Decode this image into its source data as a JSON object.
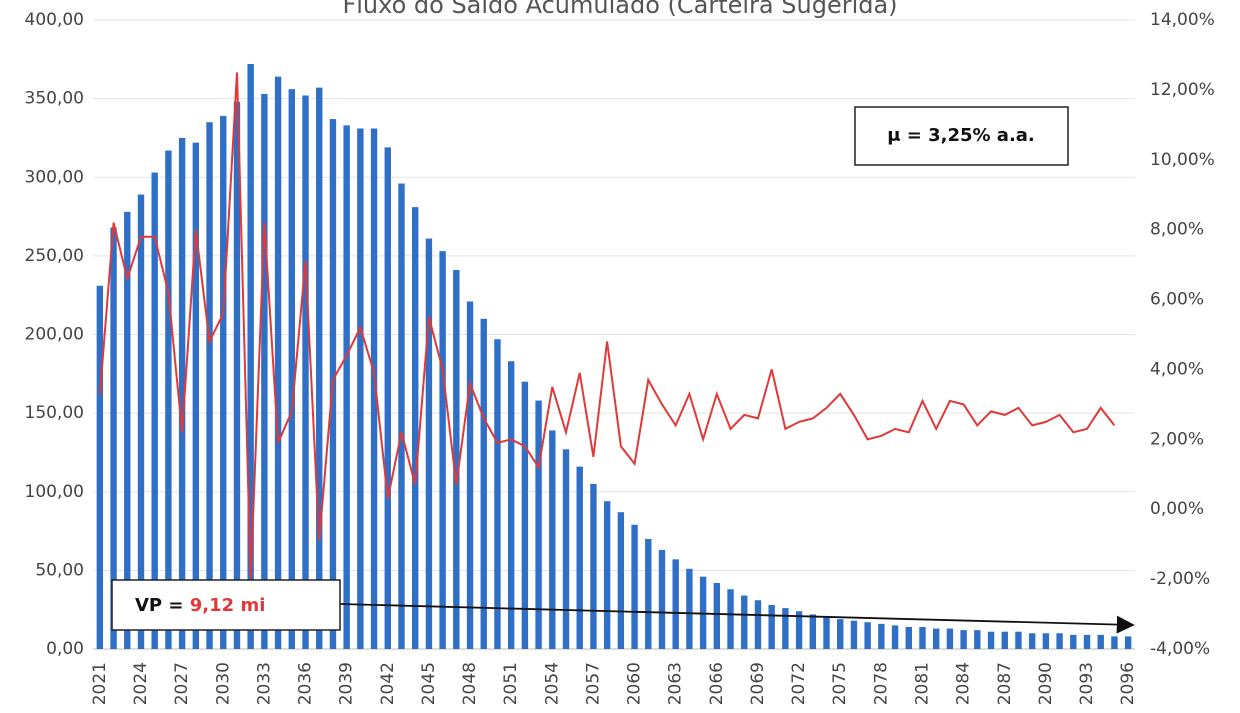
{
  "chart_data": {
    "type": "bar_line",
    "title": "Fluxo do Saldo Acumulado (Carteira Sugerida)",
    "categories": [
      "2021",
      null,
      null,
      "2024",
      null,
      null,
      "2027",
      null,
      null,
      "2030",
      null,
      null,
      "2033",
      null,
      null,
      "2036",
      null,
      null,
      "2039",
      null,
      null,
      "2042",
      null,
      null,
      "2045",
      null,
      null,
      "2048",
      null,
      null,
      "2051",
      null,
      null,
      "2054",
      null,
      null,
      "2057",
      null,
      null,
      "2060",
      null,
      null,
      "2063",
      null,
      null,
      "2066",
      null,
      null,
      "2069",
      null,
      null,
      "2072",
      null,
      null,
      "2075",
      null,
      null,
      "2078",
      null,
      null,
      "2081",
      null,
      null,
      "2084",
      null,
      null,
      "2087",
      null,
      null,
      "2090",
      null,
      null,
      "2093",
      null,
      null,
      "2096"
    ],
    "series": [
      {
        "type": "bar",
        "color": "#2f6fc6",
        "values": [
          231,
          268,
          278,
          289,
          303,
          317,
          325,
          322,
          335,
          339,
          348,
          372,
          353,
          364,
          356,
          352,
          357,
          337,
          333,
          331,
          331,
          319,
          296,
          281,
          261,
          253,
          241,
          221,
          210,
          197,
          183,
          170,
          158,
          139,
          127,
          116,
          105,
          94,
          87,
          79,
          70,
          63,
          57,
          51,
          46,
          42,
          38,
          34,
          31,
          28,
          26,
          24,
          22,
          20,
          19,
          18,
          17,
          16,
          15,
          14,
          14,
          13,
          13,
          12,
          12,
          11,
          11,
          11,
          10,
          10,
          10,
          9,
          9,
          9,
          8,
          8
        ]
      },
      {
        "type": "line",
        "axis": "y2",
        "color": "#e0393a",
        "values": [
          3.3,
          8.2,
          6.6,
          7.8,
          7.8,
          6.2,
          2.2,
          8.0,
          4.8,
          5.6,
          12.5,
          -2.0,
          8.2,
          1.9,
          2.8,
          7.1,
          -0.9,
          3.7,
          4.4,
          5.2,
          3.9,
          0.3,
          2.2,
          0.7,
          5.5,
          4.0,
          0.7,
          3.6,
          2.6,
          1.9,
          2.0,
          1.8,
          1.2,
          3.5,
          2.2,
          3.9,
          1.5,
          4.8,
          1.8,
          1.3,
          3.7,
          3.0,
          2.4,
          3.3,
          2.0,
          3.3,
          2.3,
          2.7,
          2.6,
          4.0,
          2.3,
          2.5,
          2.6,
          2.9,
          3.3,
          2.7,
          2.0,
          2.1,
          2.3,
          2.2,
          3.1,
          2.3,
          3.1,
          3.0,
          2.4,
          2.8,
          2.7,
          2.9,
          2.4,
          2.5,
          2.7,
          2.2,
          2.3,
          2.9,
          2.4,
          null
        ]
      }
    ],
    "ylim": [
      0,
      400
    ],
    "yticks": [
      {
        "value": 0,
        "label": "0,00"
      },
      {
        "value": 50,
        "label": "50,00"
      },
      {
        "value": 100,
        "label": "100,00"
      },
      {
        "value": 150,
        "label": "150,00"
      },
      {
        "value": 200,
        "label": "200,00"
      },
      {
        "value": 250,
        "label": "250,00"
      },
      {
        "value": 300,
        "label": "300,00"
      },
      {
        "value": 350,
        "label": "350,00"
      },
      {
        "value": 400,
        "label": "400,00"
      }
    ],
    "y2lim": [
      -4,
      14
    ],
    "y2ticks": [
      {
        "value": -4,
        "label": "-4,00%"
      },
      {
        "value": -2,
        "label": "-2,00%"
      },
      {
        "value": 0,
        "label": "0,00%"
      },
      {
        "value": 2,
        "label": "2,00%"
      },
      {
        "value": 4,
        "label": "4,00%"
      },
      {
        "value": 6,
        "label": "6,00%"
      },
      {
        "value": 8,
        "label": "8,00%"
      },
      {
        "value": 10,
        "label": "10,00%"
      },
      {
        "value": 12,
        "label": "12,00%"
      },
      {
        "value": 14,
        "label": "14,00%"
      }
    ],
    "grid": true,
    "annotations": {
      "mu": "μ = 3,25% a.a.",
      "vp_label": "VP =",
      "vp_value": "9,12 mi"
    }
  }
}
